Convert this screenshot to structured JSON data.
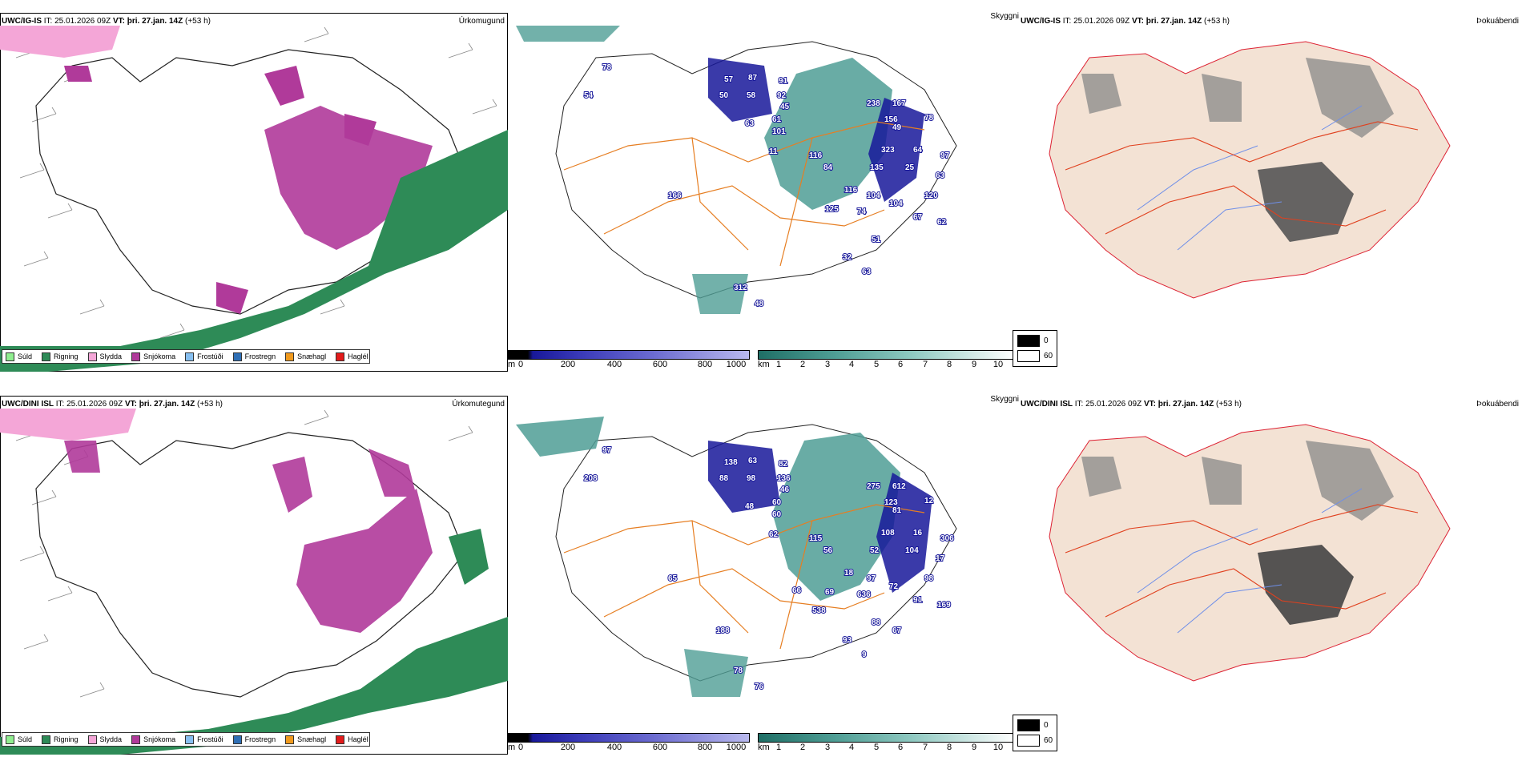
{
  "rows": [
    {
      "model": "UWC/IG-IS",
      "it_label": "IT:",
      "it": "25.01.2026 09Z",
      "vt_label": "VT:",
      "vt": "þri. 27.jan. 14Z",
      "lead": "(+53 h)",
      "precip_title": "Úrkomugund",
      "vis_title": "Skyggni",
      "fog_title": "Þokuábendi",
      "snow_labels": [
        "78",
        "54",
        "57",
        "50",
        "58",
        "63",
        "61",
        "101",
        "11",
        "87",
        "91",
        "92",
        "45",
        "238",
        "167",
        "156",
        "49",
        "78",
        "116",
        "323",
        "64",
        "84",
        "135",
        "25",
        "97",
        "63",
        "116",
        "104",
        "125",
        "74",
        "104",
        "120",
        "67",
        "62",
        "51",
        "32",
        "63",
        "312",
        "48",
        "166"
      ]
    },
    {
      "model": "UWC/DINI ISL",
      "it_label": "IT:",
      "it": "25.01.2026 09Z",
      "vt_label": "VT:",
      "vt": "þri. 27.jan. 14Z",
      "lead": "(+53 h)",
      "precip_title": "Úrkomutegund",
      "vis_title": "Skyggni",
      "fog_title": "Þokuábendi",
      "snow_labels": [
        "97",
        "208",
        "138",
        "88",
        "98",
        "48",
        "60",
        "60",
        "62",
        "63",
        "82",
        "136",
        "46",
        "275",
        "612",
        "123",
        "81",
        "12",
        "115",
        "108",
        "16",
        "56",
        "52",
        "104",
        "306",
        "17",
        "18",
        "97",
        "69",
        "636",
        "72",
        "98",
        "91",
        "169",
        "88",
        "93",
        "9",
        "78",
        "76",
        "65",
        "66",
        "538",
        "67",
        "188"
      ]
    }
  ],
  "precip_legend": [
    {
      "label": "Súld",
      "color": "#90ee90"
    },
    {
      "label": "Rigning",
      "color": "#2e8b57"
    },
    {
      "label": "Slydda",
      "color": "#f4a6d7"
    },
    {
      "label": "Snjókoma",
      "color": "#b03a9a"
    },
    {
      "label": "Frostúði",
      "color": "#87bff0"
    },
    {
      "label": "Frostregn",
      "color": "#2f6fb5"
    },
    {
      "label": "Snæhagl",
      "color": "#f09a1e"
    },
    {
      "label": "Haglél",
      "color": "#e31b1b"
    }
  ],
  "snow_bar": {
    "unit": "m",
    "ticks": [
      "0",
      "200",
      "400",
      "600",
      "800",
      "1000"
    ]
  },
  "vis_bar": {
    "unit": "km",
    "ticks": [
      "1",
      "2",
      "3",
      "4",
      "5",
      "6",
      "7",
      "8",
      "9",
      "10"
    ]
  },
  "fog_legend": {
    "values": [
      "0",
      "60"
    ]
  },
  "colors": {
    "rain": "#2e8b57",
    "snow": "#b03a9a",
    "sleet": "#f4a6d7",
    "vis": "#4f9e95",
    "deep": "#18189a",
    "land": "#f3e2d4",
    "roads": "#e67e22",
    "rivers": "#6f8fe8"
  }
}
